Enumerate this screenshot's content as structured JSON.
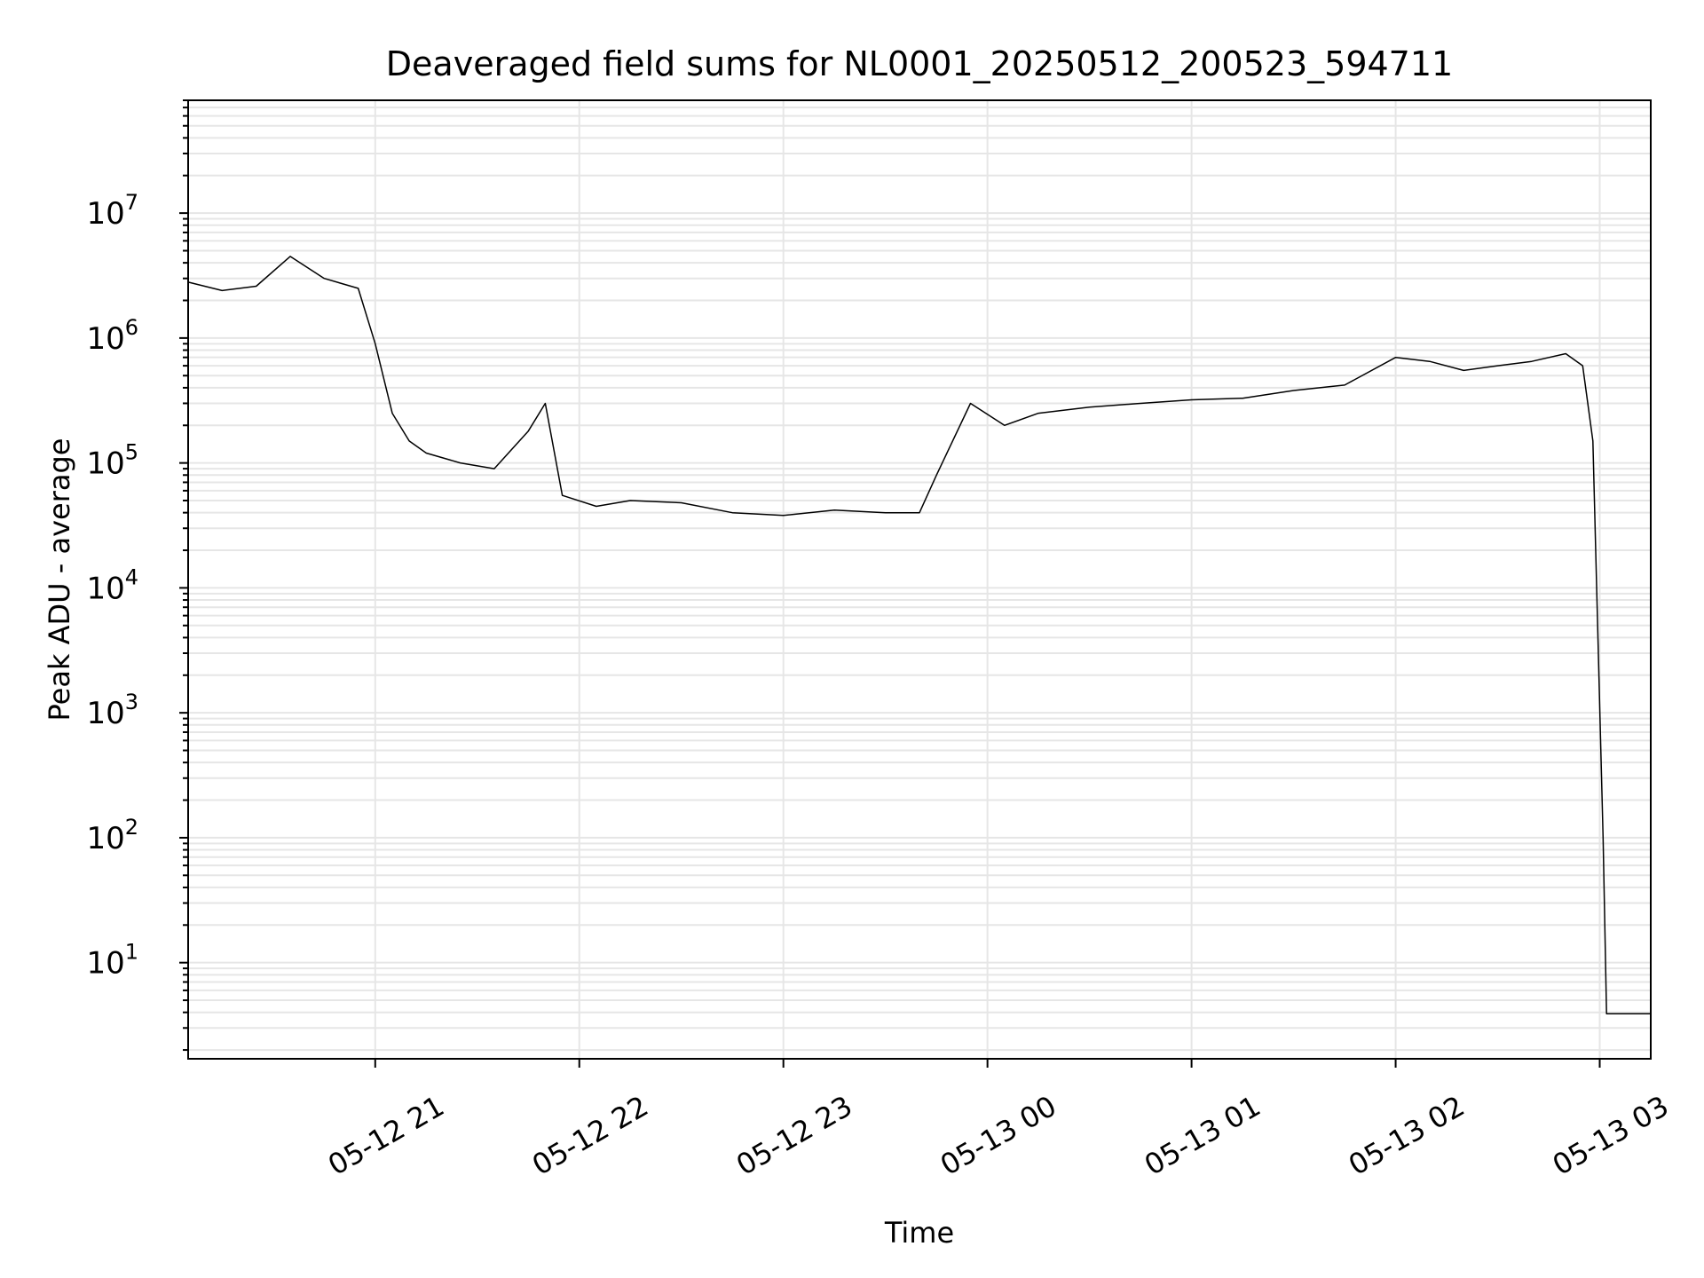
{
  "chart_data": {
    "type": "line",
    "title": "Deaveraged field sums for NL0001_20250512_200523_594711",
    "xlabel": "Time",
    "ylabel": "Peak ADU - average",
    "y_scale": "log",
    "grid": true,
    "x_tick_labels": [
      "05-12 21",
      "05-12 22",
      "05-12 23",
      "05-13 00",
      "05-13 01",
      "05-13 02",
      "05-13 03"
    ],
    "y_tick_labels": [
      {
        "base": "10",
        "exp": "1"
      },
      {
        "base": "10",
        "exp": "2"
      },
      {
        "base": "10",
        "exp": "3"
      },
      {
        "base": "10",
        "exp": "4"
      },
      {
        "base": "10",
        "exp": "5"
      },
      {
        "base": "10",
        "exp": "6"
      },
      {
        "base": "10",
        "exp": "7"
      }
    ],
    "xlim": [
      "2025-05-12 20:05",
      "2025-05-13 03:15"
    ],
    "ylim": [
      1.7,
      80000000
    ],
    "line_color": "#000000",
    "series": [
      {
        "x": [
          "2025-05-12 20:05",
          "2025-05-12 20:15",
          "2025-05-12 20:25",
          "2025-05-12 20:35",
          "2025-05-12 20:45",
          "2025-05-12 20:55",
          "2025-05-12 21:00",
          "2025-05-12 21:05",
          "2025-05-12 21:10",
          "2025-05-12 21:15",
          "2025-05-12 21:25",
          "2025-05-12 21:35",
          "2025-05-12 21:45",
          "2025-05-12 21:50",
          "2025-05-12 21:55",
          "2025-05-12 22:05",
          "2025-05-12 22:15",
          "2025-05-12 22:30",
          "2025-05-12 22:45",
          "2025-05-12 23:00",
          "2025-05-12 23:15",
          "2025-05-12 23:30",
          "2025-05-12 23:40",
          "2025-05-12 23:45",
          "2025-05-12 23:55",
          "2025-05-13 00:05",
          "2025-05-13 00:15",
          "2025-05-13 00:30",
          "2025-05-13 00:45",
          "2025-05-13 01:00",
          "2025-05-13 01:15",
          "2025-05-13 01:30",
          "2025-05-13 01:45",
          "2025-05-13 02:00",
          "2025-05-13 02:10",
          "2025-05-13 02:20",
          "2025-05-13 02:30",
          "2025-05-13 02:40",
          "2025-05-13 02:50",
          "2025-05-13 02:55",
          "2025-05-13 02:58",
          "2025-05-13 03:01",
          "2025-05-13 03:02",
          "2025-05-13 03:15"
        ],
        "y": [
          2800000,
          2400000,
          2600000,
          4500000,
          3000000,
          2500000,
          900000,
          250000,
          150000,
          120000,
          100000,
          90000,
          180000,
          300000,
          55000,
          45000,
          50000,
          48000,
          40000,
          38000,
          42000,
          40000,
          40000,
          80000,
          300000,
          200000,
          250000,
          280000,
          300000,
          320000,
          330000,
          380000,
          420000,
          700000,
          650000,
          550000,
          600000,
          650000,
          750000,
          600000,
          150000,
          100,
          3.9,
          3.9
        ]
      }
    ]
  }
}
